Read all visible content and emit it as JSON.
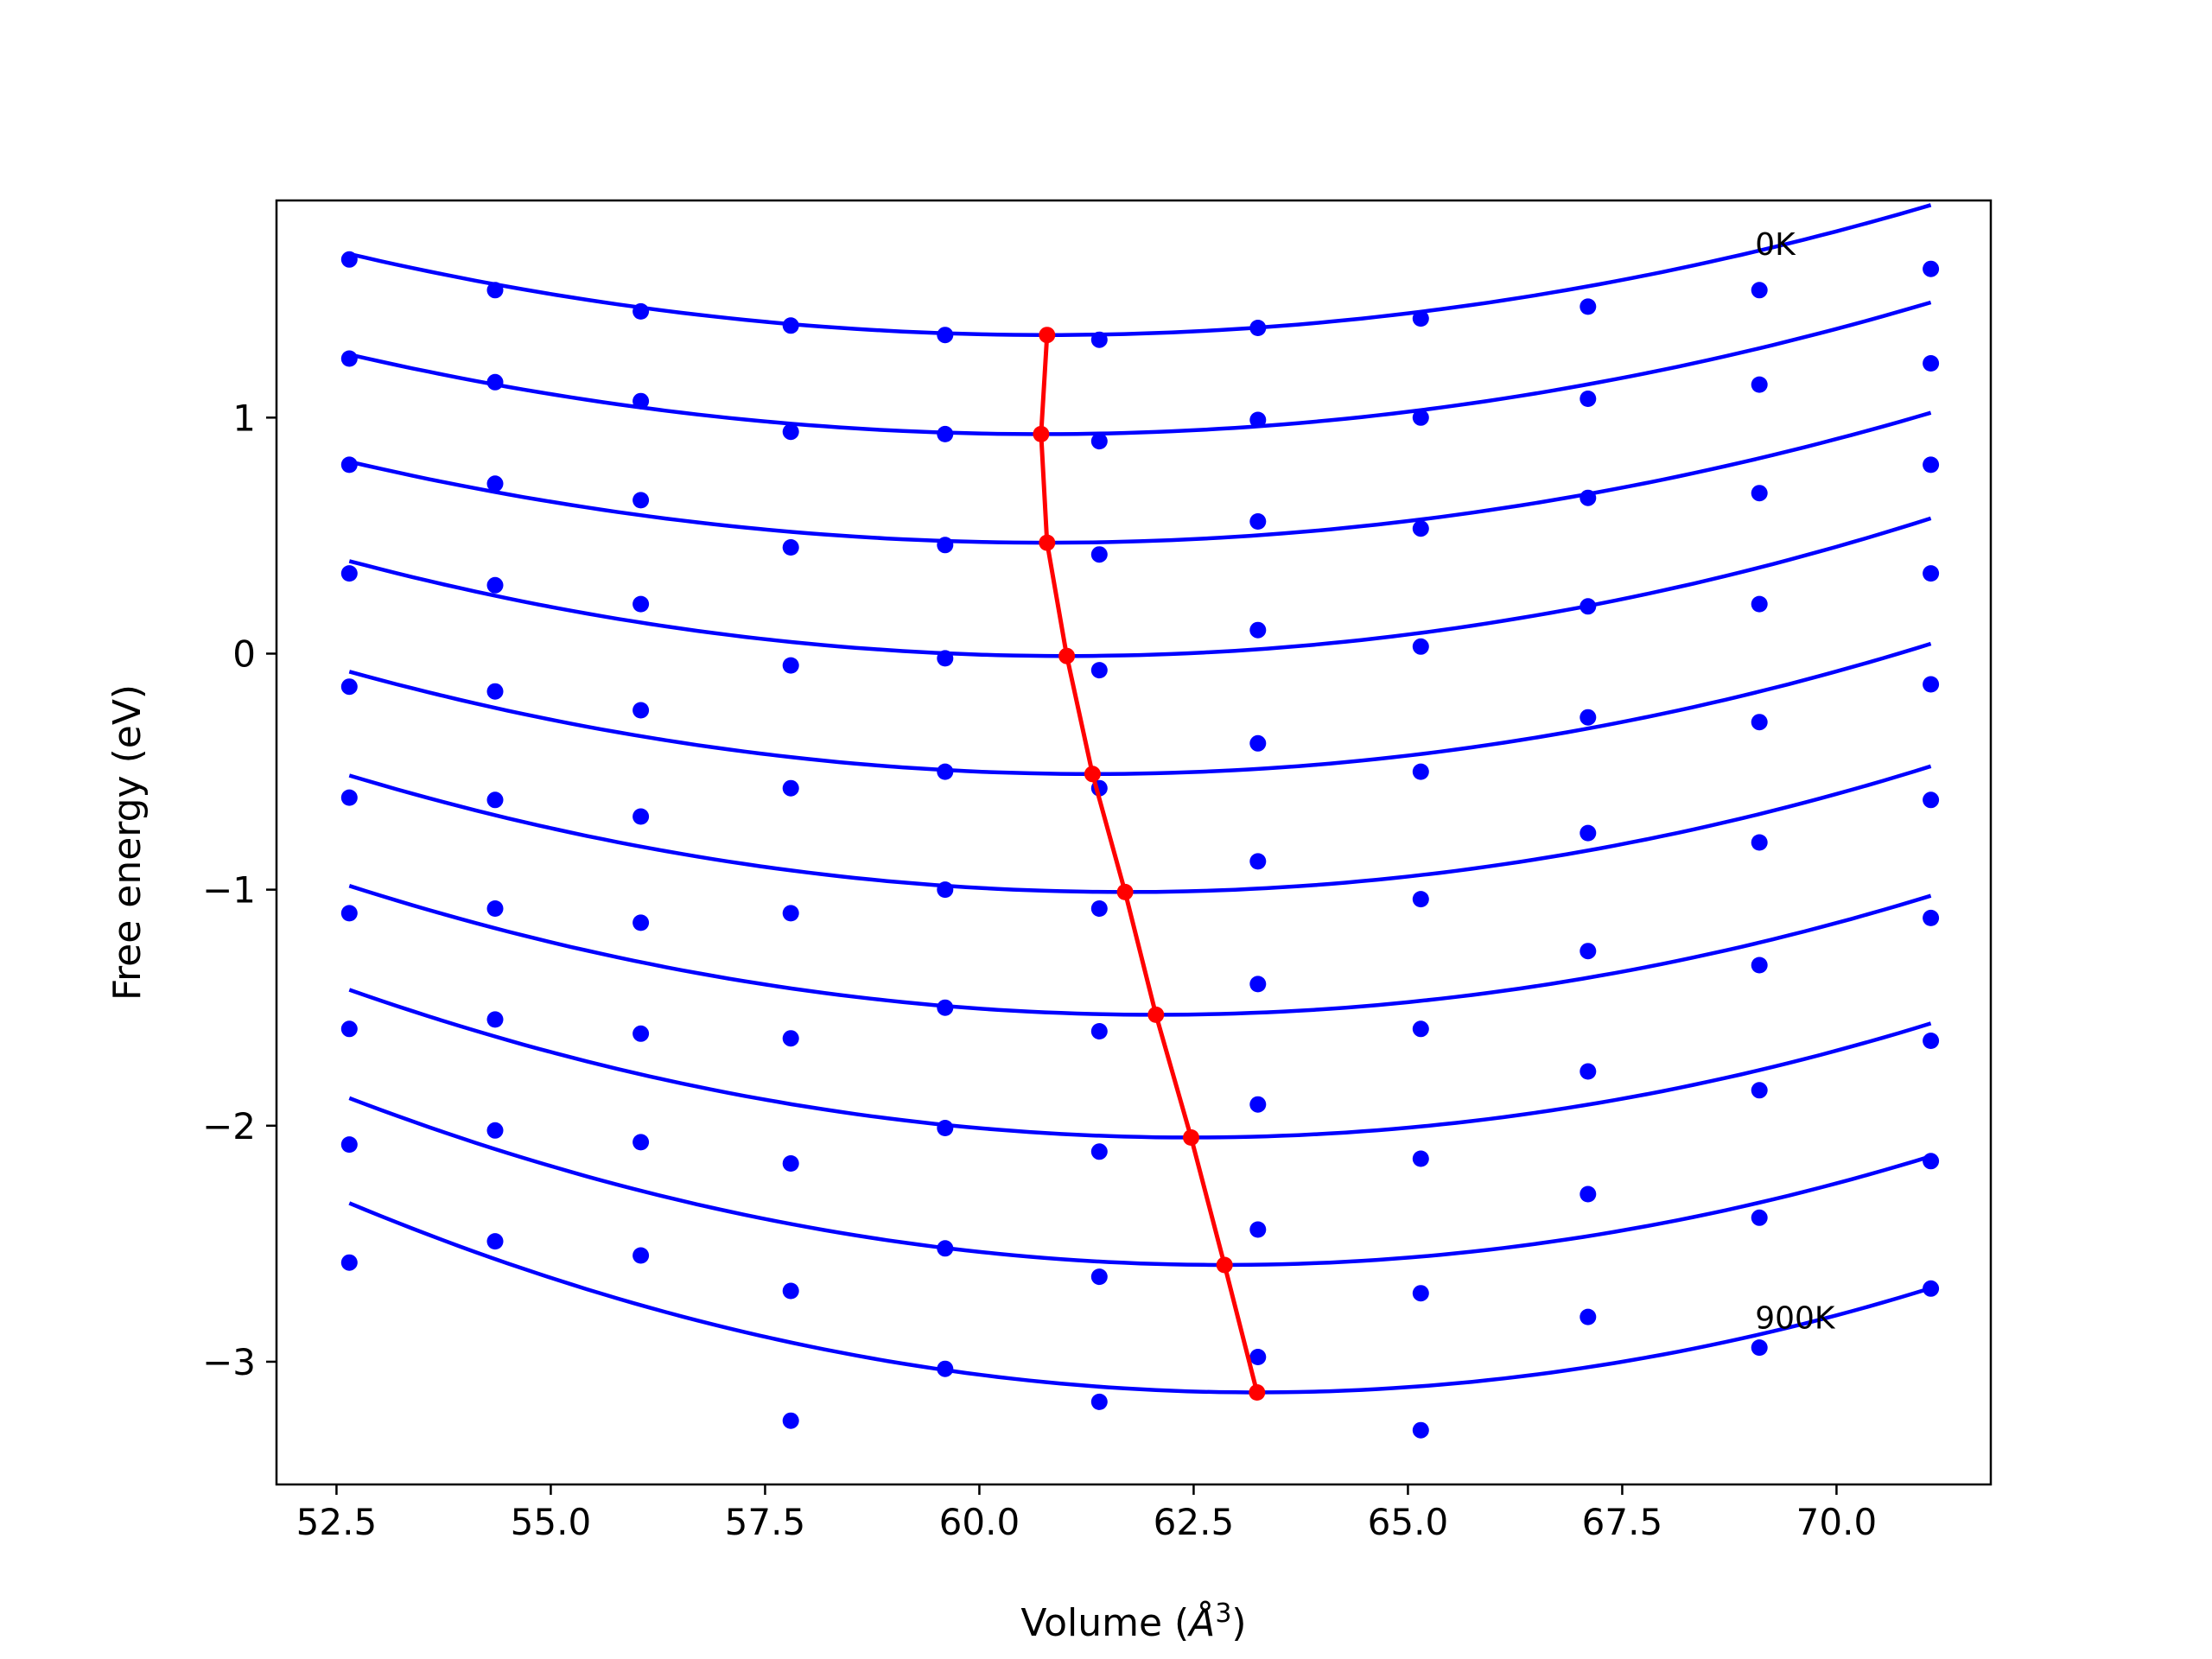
{
  "chart_data": {
    "type": "scatter",
    "title": "",
    "xlabel": "Volume (",
    "xlabel_symbol": "Å",
    "xlabel_exp": "3",
    "xlabel_end": ")",
    "ylabel": "Free energy (eV)",
    "xlim": [
      51.8,
      71.8
    ],
    "ylim": [
      -3.52,
      1.92
    ],
    "xticks": [
      52.5,
      55.0,
      57.5,
      60.0,
      62.5,
      65.0,
      67.5,
      70.0
    ],
    "xtick_labels": [
      "52.5",
      "55.0",
      "57.5",
      "60.0",
      "62.5",
      "65.0",
      "67.5",
      "70.0"
    ],
    "yticks": [
      1,
      0,
      -1,
      -2,
      -3
    ],
    "ytick_labels": [
      "1",
      "0",
      "−1",
      "−2",
      "−3"
    ],
    "grid": false,
    "annotations": [
      {
        "text": "0K",
        "x": 69.05,
        "y": 1.69
      },
      {
        "text": "900K",
        "x": 69.05,
        "y": -2.86
      }
    ],
    "colors": {
      "points": "#0000ff",
      "fits": "#0000ff",
      "minima": "#ff0000"
    },
    "volumes": [
      52.65,
      54.35,
      56.05,
      57.8,
      59.6,
      61.4,
      63.25,
      65.15,
      67.1,
      69.1,
      71.1
    ],
    "series": [
      {
        "values": [
          1.67,
          1.54,
          1.45,
          1.39,
          1.35,
          1.33,
          1.38,
          1.42,
          1.47,
          1.54,
          1.63
        ],
        "fit": {
          "v0": 60.79,
          "e0": 1.35,
          "curv": 0.00518
        }
      },
      {
        "values": [
          1.25,
          1.15,
          1.07,
          0.94,
          0.93,
          0.9,
          0.99,
          1.0,
          1.08,
          1.14,
          1.23
        ],
        "fit": {
          "v0": 60.72,
          "e0": 0.93,
          "curv": 0.00518
        }
      },
      {
        "values": [
          0.8,
          0.72,
          0.65,
          0.45,
          0.46,
          0.42,
          0.56,
          0.53,
          0.66,
          0.68,
          0.8
        ],
        "fit": {
          "v0": 60.79,
          "e0": 0.47,
          "curv": 0.00518
        }
      },
      {
        "values": [
          0.34,
          0.29,
          0.21,
          -0.05,
          -0.02,
          -0.07,
          0.1,
          0.03,
          0.2,
          0.21,
          0.34
        ],
        "fit": {
          "v0": 61.02,
          "e0": -0.01,
          "curv": 0.00574
        }
      },
      {
        "values": [
          -0.14,
          -0.16,
          -0.24,
          -0.57,
          -0.5,
          -0.57,
          -0.38,
          -0.5,
          -0.27,
          -0.29,
          -0.13
        ],
        "fit": {
          "v0": 61.32,
          "e0": -0.51,
          "curv": 0.00577
        }
      },
      {
        "values": [
          -0.61,
          -0.62,
          -0.69,
          -1.1,
          -1.0,
          -1.08,
          -0.88,
          -1.04,
          -0.76,
          -0.8,
          -0.62
        ],
        "fit": {
          "v0": 61.7,
          "e0": -1.01,
          "curv": 0.00603
        }
      },
      {
        "values": [
          -1.1,
          -1.08,
          -1.14,
          -1.63,
          -1.5,
          -1.6,
          -1.4,
          -1.59,
          -1.26,
          -1.32,
          -1.12
        ],
        "fit": {
          "v0": 62.06,
          "e0": -1.53,
          "curv": 0.00617
        }
      },
      {
        "values": [
          -1.59,
          -1.55,
          -1.61,
          -2.16,
          -2.01,
          -2.11,
          -1.91,
          -2.14,
          -1.77,
          -1.85,
          -1.64
        ],
        "fit": {
          "v0": 62.47,
          "e0": -2.05,
          "curv": 0.00649
        }
      },
      {
        "values": [
          -2.08,
          -2.02,
          -2.07,
          -2.7,
          -2.52,
          -2.64,
          -2.44,
          -2.71,
          -2.29,
          -2.39,
          -2.15
        ],
        "fit": {
          "v0": 62.86,
          "e0": -2.59,
          "curv": 0.00678
        }
      },
      {
        "values": [
          -2.58,
          -2.49,
          -2.55,
          -3.25,
          -3.03,
          -3.17,
          -2.98,
          -3.29,
          -2.81,
          -2.94,
          -2.69
        ],
        "fit": {
          "v0": 63.24,
          "e0": -3.13,
          "curv": 0.00715
        }
      }
    ],
    "minima_line": {
      "x": [
        60.79,
        60.72,
        60.79,
        61.02,
        61.32,
        61.7,
        62.06,
        62.47,
        62.86,
        63.24
      ],
      "y": [
        1.35,
        0.93,
        0.47,
        -0.01,
        -0.51,
        -1.01,
        -1.53,
        -2.05,
        -2.59,
        -3.13
      ]
    }
  }
}
